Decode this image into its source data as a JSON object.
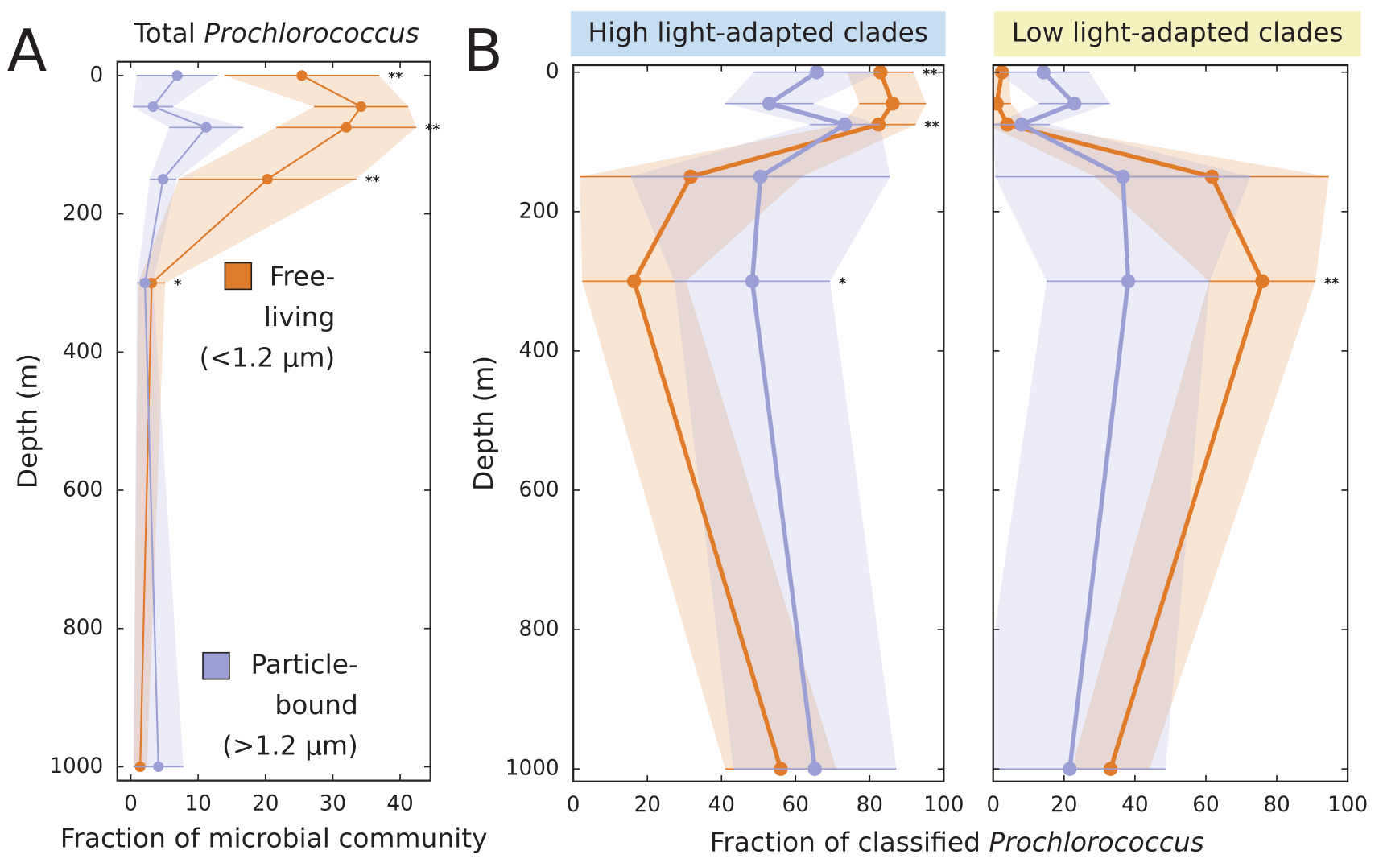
{
  "panel_labels": [
    "A",
    "B"
  ],
  "shared_xlabel": {
    "text": "Fraction of classified",
    "italic": "Prochlorococcus"
  },
  "chart_data": [
    {
      "type": "line",
      "title": "Total",
      "title_italic": "Prochlorococcus",
      "xlabel": "Fraction of microbial community",
      "ylabel": "Depth (m)",
      "y": [
        0,
        45,
        75,
        150,
        300,
        1000
      ],
      "xlim": [
        -2,
        44.5
      ],
      "ylim": [
        -20,
        1020
      ],
      "y_inverted": true,
      "xticks": [
        0,
        10,
        20,
        30,
        40
      ],
      "yticks": [
        0,
        200,
        400,
        600,
        800,
        1000
      ],
      "ytick_labels": true,
      "legend": true,
      "series": [
        {
          "name": [
            "Free-",
            "living",
            "(<1.2 µm)"
          ],
          "color": "#e07b2a",
          "values": [
            25.4,
            34.2,
            32,
            20.3,
            3.1,
            1.4
          ],
          "errors": [
            11.5,
            7,
            10.4,
            13.2,
            2,
            1
          ]
        },
        {
          "name": [
            "Particle-",
            "bound",
            "(>1.2 µm)"
          ],
          "color": "#9b9fd6",
          "values": [
            6.9,
            3.3,
            11.2,
            4.8,
            2.1,
            4.1
          ],
          "errors": [
            6,
            3,
            5.5,
            2,
            1.2,
            3.7
          ]
        }
      ],
      "significance": [
        "**",
        null,
        "**",
        "**",
        "*",
        null
      ]
    },
    {
      "type": "line",
      "title": "High light-adapted clades",
      "title_background": "#c6def2",
      "ylabel": "Depth (m)",
      "y": [
        0,
        45,
        75,
        150,
        300,
        1000
      ],
      "xlim": [
        0,
        100
      ],
      "ylim": [
        -10,
        1018
      ],
      "y_inverted": true,
      "xticks": [
        0,
        20,
        40,
        60,
        80,
        100
      ],
      "yticks": [
        0,
        200,
        400,
        600,
        800,
        1000
      ],
      "ytick_labels": true,
      "series": [
        {
          "color": "#e07b2a",
          "values": [
            82.9,
            86.2,
            82.4,
            31.7,
            16.4,
            56
          ],
          "errors": [
            9,
            9,
            10,
            30,
            14,
            15
          ]
        },
        {
          "color": "#9b9fd6",
          "values": [
            65.7,
            52.9,
            73.3,
            50.5,
            48.3,
            65.2
          ],
          "errors": [
            17,
            12,
            9.5,
            35,
            21,
            22
          ]
        }
      ],
      "significance": [
        "**",
        null,
        "**",
        null,
        "*",
        null
      ]
    },
    {
      "type": "line",
      "title": "Low light-adapted clades",
      "title_background": "#f6f2bf",
      "y": [
        0,
        45,
        75,
        150,
        300,
        1000
      ],
      "xlim": [
        0,
        100
      ],
      "ylim": [
        -10,
        1018
      ],
      "y_inverted": true,
      "xticks": [
        0,
        20,
        40,
        60,
        80,
        100
      ],
      "yticks": [
        0,
        200,
        400,
        600,
        800,
        1000
      ],
      "ytick_labels": false,
      "series": [
        {
          "color": "#e07b2a",
          "values": [
            2.5,
            1,
            4,
            61.7,
            75.9,
            33.1
          ],
          "errors": [
            2,
            4,
            6,
            33,
            15,
            11
          ]
        },
        {
          "color": "#9b9fd6",
          "values": [
            14.2,
            22.9,
            8,
            36.6,
            38.1,
            21.6
          ],
          "errors": [
            13,
            10,
            8,
            36,
            23,
            27
          ]
        }
      ],
      "significance": [
        null,
        null,
        null,
        null,
        "**",
        null
      ]
    }
  ]
}
